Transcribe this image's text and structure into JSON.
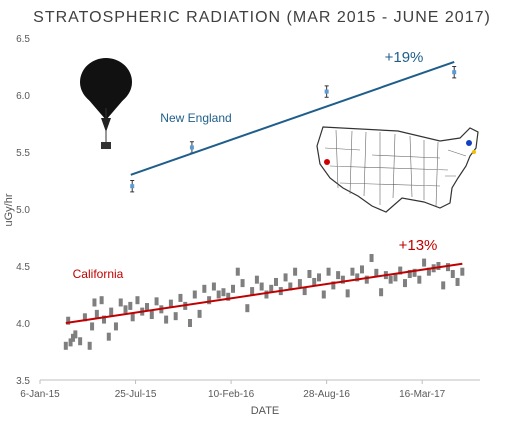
{
  "chart_data": {
    "type": "scatter",
    "title": "STRATOSPHERIC RADIATION (MAR 2015 - JUNE 2017)",
    "xlabel": "DATE",
    "ylabel": "uGy/hr",
    "ylim": [
      3.5,
      6.5
    ],
    "yticks": [
      "3.5",
      "4.0",
      "4.5",
      "5.0",
      "5.5",
      "6.0",
      "6.5"
    ],
    "xlim": [
      "2015-01-06",
      "2017-07-15"
    ],
    "xticks": [
      {
        "date": "2015-01-06",
        "label": "6-Jan-15"
      },
      {
        "date": "2015-07-25",
        "label": "25-Jul-15"
      },
      {
        "date": "2016-02-10",
        "label": "10-Feb-16"
      },
      {
        "date": "2016-08-28",
        "label": "28-Aug-16"
      },
      {
        "date": "2017-03-16",
        "label": "16-Mar-17"
      }
    ],
    "grid": false,
    "legend": "none",
    "colors": {
      "title": "#404040",
      "new_england": "#1f5e8a",
      "new_england_points": "#5b9bd5",
      "california": "#c00000",
      "california_points": "#7f7f7f",
      "map_dot_california": "#d00000",
      "map_dot_new_england": "#1040c0",
      "map_dot_small": "#f0c000"
    },
    "icons": [
      "balloon-icon",
      "usa-map-icon"
    ],
    "series": [
      {
        "label": "New England",
        "percent_label": "+19%",
        "x": [
          "2015-07-18",
          "2015-11-20",
          "2016-08-28",
          "2017-05-22"
        ],
        "y": [
          5.2,
          5.54,
          6.03,
          6.2
        ],
        "err": [
          0.05,
          0.05,
          0.05,
          0.05
        ],
        "trend": {
          "x": [
            "2015-07-15",
            "2017-05-22"
          ],
          "y": [
            5.3,
            6.29
          ]
        }
      },
      {
        "label": "California",
        "percent_label": "+13%",
        "x": [
          "2015-03-01",
          "2015-03-06",
          "2015-03-11",
          "2015-03-16",
          "2015-03-21",
          "2015-03-31",
          "2015-04-10",
          "2015-04-20",
          "2015-04-25",
          "2015-04-30",
          "2015-05-05",
          "2015-05-15",
          "2015-05-20",
          "2015-05-30",
          "2015-06-04",
          "2015-06-14",
          "2015-06-24",
          "2015-07-04",
          "2015-07-14",
          "2015-07-19",
          "2015-07-29",
          "2015-08-08",
          "2015-08-18",
          "2015-08-28",
          "2015-09-07",
          "2015-09-17",
          "2015-09-27",
          "2015-10-07",
          "2015-10-17",
          "2015-10-27",
          "2015-11-06",
          "2015-11-16",
          "2015-11-26",
          "2015-12-06",
          "2015-12-16",
          "2015-12-26",
          "2016-01-05",
          "2016-01-15",
          "2016-01-25",
          "2016-02-04",
          "2016-02-14",
          "2016-02-24",
          "2016-03-05",
          "2016-03-15",
          "2016-03-25",
          "2016-04-04",
          "2016-04-14",
          "2016-04-24",
          "2016-05-04",
          "2016-05-14",
          "2016-05-24",
          "2016-06-03",
          "2016-06-13",
          "2016-06-23",
          "2016-07-03",
          "2016-07-13",
          "2016-07-23",
          "2016-08-02",
          "2016-08-12",
          "2016-08-22",
          "2016-09-01",
          "2016-09-11",
          "2016-09-21",
          "2016-10-01",
          "2016-10-11",
          "2016-10-21",
          "2016-10-31",
          "2016-11-10",
          "2016-11-20",
          "2016-11-30",
          "2016-12-10",
          "2016-12-20",
          "2016-12-30",
          "2017-01-09",
          "2017-01-19",
          "2017-01-29",
          "2017-02-08",
          "2017-02-18",
          "2017-02-28",
          "2017-03-10",
          "2017-03-20",
          "2017-03-30",
          "2017-04-09",
          "2017-04-19",
          "2017-04-29",
          "2017-05-09",
          "2017-05-19",
          "2017-05-29",
          "2017-06-08"
        ],
        "y": [
          3.8,
          4.02,
          3.83,
          3.87,
          3.9,
          3.84,
          4.05,
          3.8,
          3.97,
          4.18,
          4.08,
          4.2,
          4.03,
          3.88,
          4.1,
          3.97,
          4.18,
          4.12,
          4.15,
          4.05,
          4.2,
          4.1,
          4.14,
          4.07,
          4.19,
          4.12,
          4.03,
          4.17,
          4.06,
          4.22,
          4.15,
          4.0,
          4.25,
          4.08,
          4.3,
          4.2,
          4.32,
          4.25,
          4.27,
          4.23,
          4.3,
          4.45,
          4.35,
          4.13,
          4.28,
          4.38,
          4.32,
          4.25,
          4.3,
          4.36,
          4.28,
          4.4,
          4.32,
          4.45,
          4.35,
          4.28,
          4.43,
          4.36,
          4.4,
          4.25,
          4.45,
          4.33,
          4.42,
          4.38,
          4.26,
          4.45,
          4.4,
          4.47,
          4.38,
          4.57,
          4.44,
          4.27,
          4.42,
          4.38,
          4.4,
          4.46,
          4.35,
          4.43,
          4.44,
          4.38,
          4.53,
          4.45,
          4.48,
          4.5,
          4.33,
          4.49,
          4.43,
          4.36,
          4.45
        ],
        "trend": {
          "x": [
            "2015-03-01",
            "2017-06-08"
          ],
          "y": [
            4.0,
            4.52
          ]
        }
      }
    ]
  }
}
